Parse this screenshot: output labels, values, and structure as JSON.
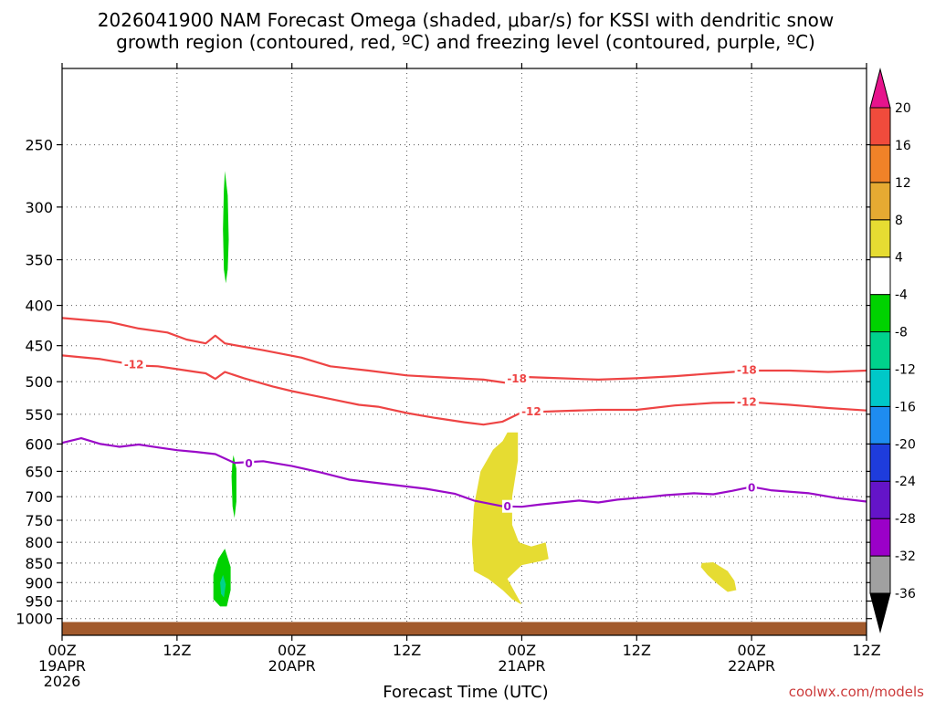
{
  "chart_data": {
    "type": "time-height",
    "title_line1": "2026041900 NAM Forecast Omega (shaded, μbar/s) for KSSI with dendritic snow",
    "title_line2": "growth region (contoured, red, ºC) and freezing level (contoured, purple, ºC)",
    "xlabel": "Forecast Time (UTC)",
    "credit": "coolwx.com/models",
    "x_range_hours": [
      0,
      84
    ],
    "y_scale": "log-pressure",
    "y_range_hpa": [
      200,
      1050
    ],
    "x_ticks": [
      {
        "hour": 0,
        "lines": [
          "00Z",
          "19APR",
          "2026"
        ]
      },
      {
        "hour": 12,
        "lines": [
          "12Z"
        ]
      },
      {
        "hour": 24,
        "lines": [
          "00Z",
          "20APR"
        ]
      },
      {
        "hour": 36,
        "lines": [
          "12Z"
        ]
      },
      {
        "hour": 48,
        "lines": [
          "00Z",
          "21APR"
        ]
      },
      {
        "hour": 60,
        "lines": [
          "12Z"
        ]
      },
      {
        "hour": 72,
        "lines": [
          "00Z",
          "22APR"
        ]
      },
      {
        "hour": 84,
        "lines": [
          "12Z"
        ]
      }
    ],
    "y_ticks": [
      250,
      300,
      350,
      400,
      450,
      500,
      550,
      600,
      650,
      700,
      750,
      800,
      850,
      900,
      950,
      1000
    ],
    "colorbar": {
      "colors": [
        "#000000",
        "#a0a0a0",
        "#9b00c8",
        "#6414c8",
        "#1e3cdc",
        "#1e8cf0",
        "#00c8c8",
        "#00d28c",
        "#00d200",
        "#ffffff",
        "#e6dc32",
        "#e6aa32",
        "#f08228",
        "#f04b3c",
        "#e6148c"
      ],
      "labels": [
        "-36",
        "-32",
        "-28",
        "-24",
        "-20",
        "-16",
        "-12",
        "-8",
        "-4",
        "4",
        "8",
        "12",
        "16",
        "20"
      ]
    },
    "series": [
      {
        "name": "-18C isotherm",
        "color": "#ee4444",
        "points": [
          [
            0,
            415
          ],
          [
            5,
            420
          ],
          [
            8,
            428
          ],
          [
            11,
            433
          ],
          [
            13,
            442
          ],
          [
            15,
            447
          ],
          [
            16,
            437
          ],
          [
            17,
            447
          ],
          [
            21,
            456
          ],
          [
            25,
            466
          ],
          [
            28,
            478
          ],
          [
            32,
            484
          ],
          [
            36,
            491
          ],
          [
            40,
            494
          ],
          [
            44,
            497
          ],
          [
            47,
            503
          ],
          [
            48,
            493
          ],
          [
            52,
            495
          ],
          [
            56,
            497
          ],
          [
            60,
            495
          ],
          [
            64,
            492
          ],
          [
            68,
            488
          ],
          [
            72,
            484
          ],
          [
            76,
            484
          ],
          [
            80,
            486
          ],
          [
            84,
            484
          ]
        ]
      },
      {
        "name": "-12C isotherm",
        "color": "#ee4444",
        "points": [
          [
            0,
            463
          ],
          [
            4,
            468
          ],
          [
            8,
            477
          ],
          [
            10,
            478
          ],
          [
            12,
            482
          ],
          [
            14,
            486
          ],
          [
            15,
            488
          ],
          [
            16,
            496
          ],
          [
            17,
            486
          ],
          [
            19,
            495
          ],
          [
            22,
            507
          ],
          [
            24,
            514
          ],
          [
            26,
            520
          ],
          [
            28,
            526
          ],
          [
            31,
            535
          ],
          [
            33,
            538
          ],
          [
            36,
            548
          ],
          [
            39,
            556
          ],
          [
            42,
            563
          ],
          [
            44,
            567
          ],
          [
            46,
            562
          ],
          [
            48,
            547
          ],
          [
            52,
            545
          ],
          [
            56,
            543
          ],
          [
            60,
            543
          ],
          [
            64,
            536
          ],
          [
            68,
            532
          ],
          [
            72,
            531
          ],
          [
            76,
            535
          ],
          [
            80,
            540
          ],
          [
            84,
            544
          ]
        ]
      },
      {
        "name": "0C freezing level",
        "color": "#9a0ac8",
        "points": [
          [
            0,
            598
          ],
          [
            2,
            590
          ],
          [
            4,
            600
          ],
          [
            6,
            605
          ],
          [
            8,
            601
          ],
          [
            10,
            606
          ],
          [
            12,
            611
          ],
          [
            14,
            614
          ],
          [
            16,
            618
          ],
          [
            18,
            634
          ],
          [
            21,
            631
          ],
          [
            24,
            640
          ],
          [
            27,
            652
          ],
          [
            30,
            666
          ],
          [
            34,
            675
          ],
          [
            38,
            684
          ],
          [
            41,
            694
          ],
          [
            43,
            708
          ],
          [
            46,
            720
          ],
          [
            48,
            721
          ],
          [
            50,
            716
          ],
          [
            52,
            712
          ],
          [
            54,
            708
          ],
          [
            56,
            712
          ],
          [
            58,
            706
          ],
          [
            61,
            701
          ],
          [
            63,
            697
          ],
          [
            66,
            693
          ],
          [
            68,
            695
          ],
          [
            70,
            688
          ],
          [
            72,
            680
          ],
          [
            74,
            687
          ],
          [
            78,
            693
          ],
          [
            81,
            703
          ],
          [
            84,
            710
          ]
        ]
      }
    ],
    "contour_labels": [
      {
        "text": "-12",
        "hour": 7.5,
        "p": 475,
        "color": "#ee4444"
      },
      {
        "text": "-18",
        "hour": 47.5,
        "p": 495,
        "color": "#ee4444"
      },
      {
        "text": "-12",
        "hour": 49,
        "p": 545,
        "color": "#ee4444"
      },
      {
        "text": "-18",
        "hour": 71.5,
        "p": 483,
        "color": "#ee4444"
      },
      {
        "text": "-12",
        "hour": 71.5,
        "p": 530,
        "color": "#ee4444"
      },
      {
        "text": "0",
        "hour": 19.5,
        "p": 635,
        "color": "#9a0ac8"
      },
      {
        "text": "0",
        "hour": 46.5,
        "p": 720,
        "color": "#9a0ac8"
      },
      {
        "text": "0",
        "hour": 72,
        "p": 681,
        "color": "#9a0ac8"
      }
    ],
    "omega_areas": [
      {
        "name": "upward motion -4 to -8 (upper)",
        "color": "#00d200",
        "points": [
          [
            17.0,
            270
          ],
          [
            17.3,
            290
          ],
          [
            17.4,
            330
          ],
          [
            17.3,
            360
          ],
          [
            17.1,
            375
          ],
          [
            16.9,
            360
          ],
          [
            16.8,
            320
          ],
          [
            16.9,
            285
          ]
        ]
      },
      {
        "name": "upward motion -4 to -8 (mid)",
        "color": "#00d200",
        "points": [
          [
            17.9,
            620
          ],
          [
            18.2,
            645
          ],
          [
            18.2,
            710
          ],
          [
            18.0,
            745
          ],
          [
            17.8,
            720
          ],
          [
            17.7,
            660
          ],
          [
            17.8,
            630
          ]
        ]
      },
      {
        "name": "upward motion -4 to -8 (low)",
        "color": "#00d200",
        "points": [
          [
            17.0,
            815
          ],
          [
            17.6,
            860
          ],
          [
            17.6,
            920
          ],
          [
            17.2,
            965
          ],
          [
            16.5,
            965
          ],
          [
            15.8,
            945
          ],
          [
            15.8,
            880
          ],
          [
            16.3,
            840
          ]
        ]
      },
      {
        "name": "upward motion -8 to -12 core",
        "color": "#00d28c",
        "points": [
          [
            16.8,
            880
          ],
          [
            17.1,
            905
          ],
          [
            16.9,
            940
          ],
          [
            16.6,
            930
          ],
          [
            16.5,
            900
          ]
        ]
      },
      {
        "name": "sinking motion 4 to 8 (day 3)",
        "color": "#e6dc32",
        "points": [
          [
            46.5,
            580
          ],
          [
            47.6,
            580
          ],
          [
            47.6,
            630
          ],
          [
            47.0,
            700
          ],
          [
            47.0,
            760
          ],
          [
            47.7,
            800
          ],
          [
            49,
            810
          ],
          [
            50.5,
            800
          ],
          [
            50.8,
            840
          ],
          [
            50,
            845
          ],
          [
            48,
            855
          ],
          [
            46.5,
            890
          ],
          [
            48,
            960
          ],
          [
            47,
            945
          ],
          [
            46,
            920
          ],
          [
            44.5,
            890
          ],
          [
            43,
            870
          ],
          [
            42.8,
            800
          ],
          [
            43,
            720
          ],
          [
            43.7,
            650
          ],
          [
            45,
            610
          ],
          [
            46,
            595
          ]
        ]
      },
      {
        "name": "sinking motion 4 to 8 (day 4)",
        "color": "#e6dc32",
        "points": [
          [
            66.8,
            850
          ],
          [
            68,
            848
          ],
          [
            69.5,
            870
          ],
          [
            70.2,
            895
          ],
          [
            70.4,
            920
          ],
          [
            69.5,
            925
          ],
          [
            68.5,
            905
          ],
          [
            67.4,
            880
          ],
          [
            66.7,
            860
          ]
        ]
      }
    ],
    "ground": {
      "name": "terrain",
      "color": "#a25a2c",
      "top_hpa": 1010
    }
  }
}
